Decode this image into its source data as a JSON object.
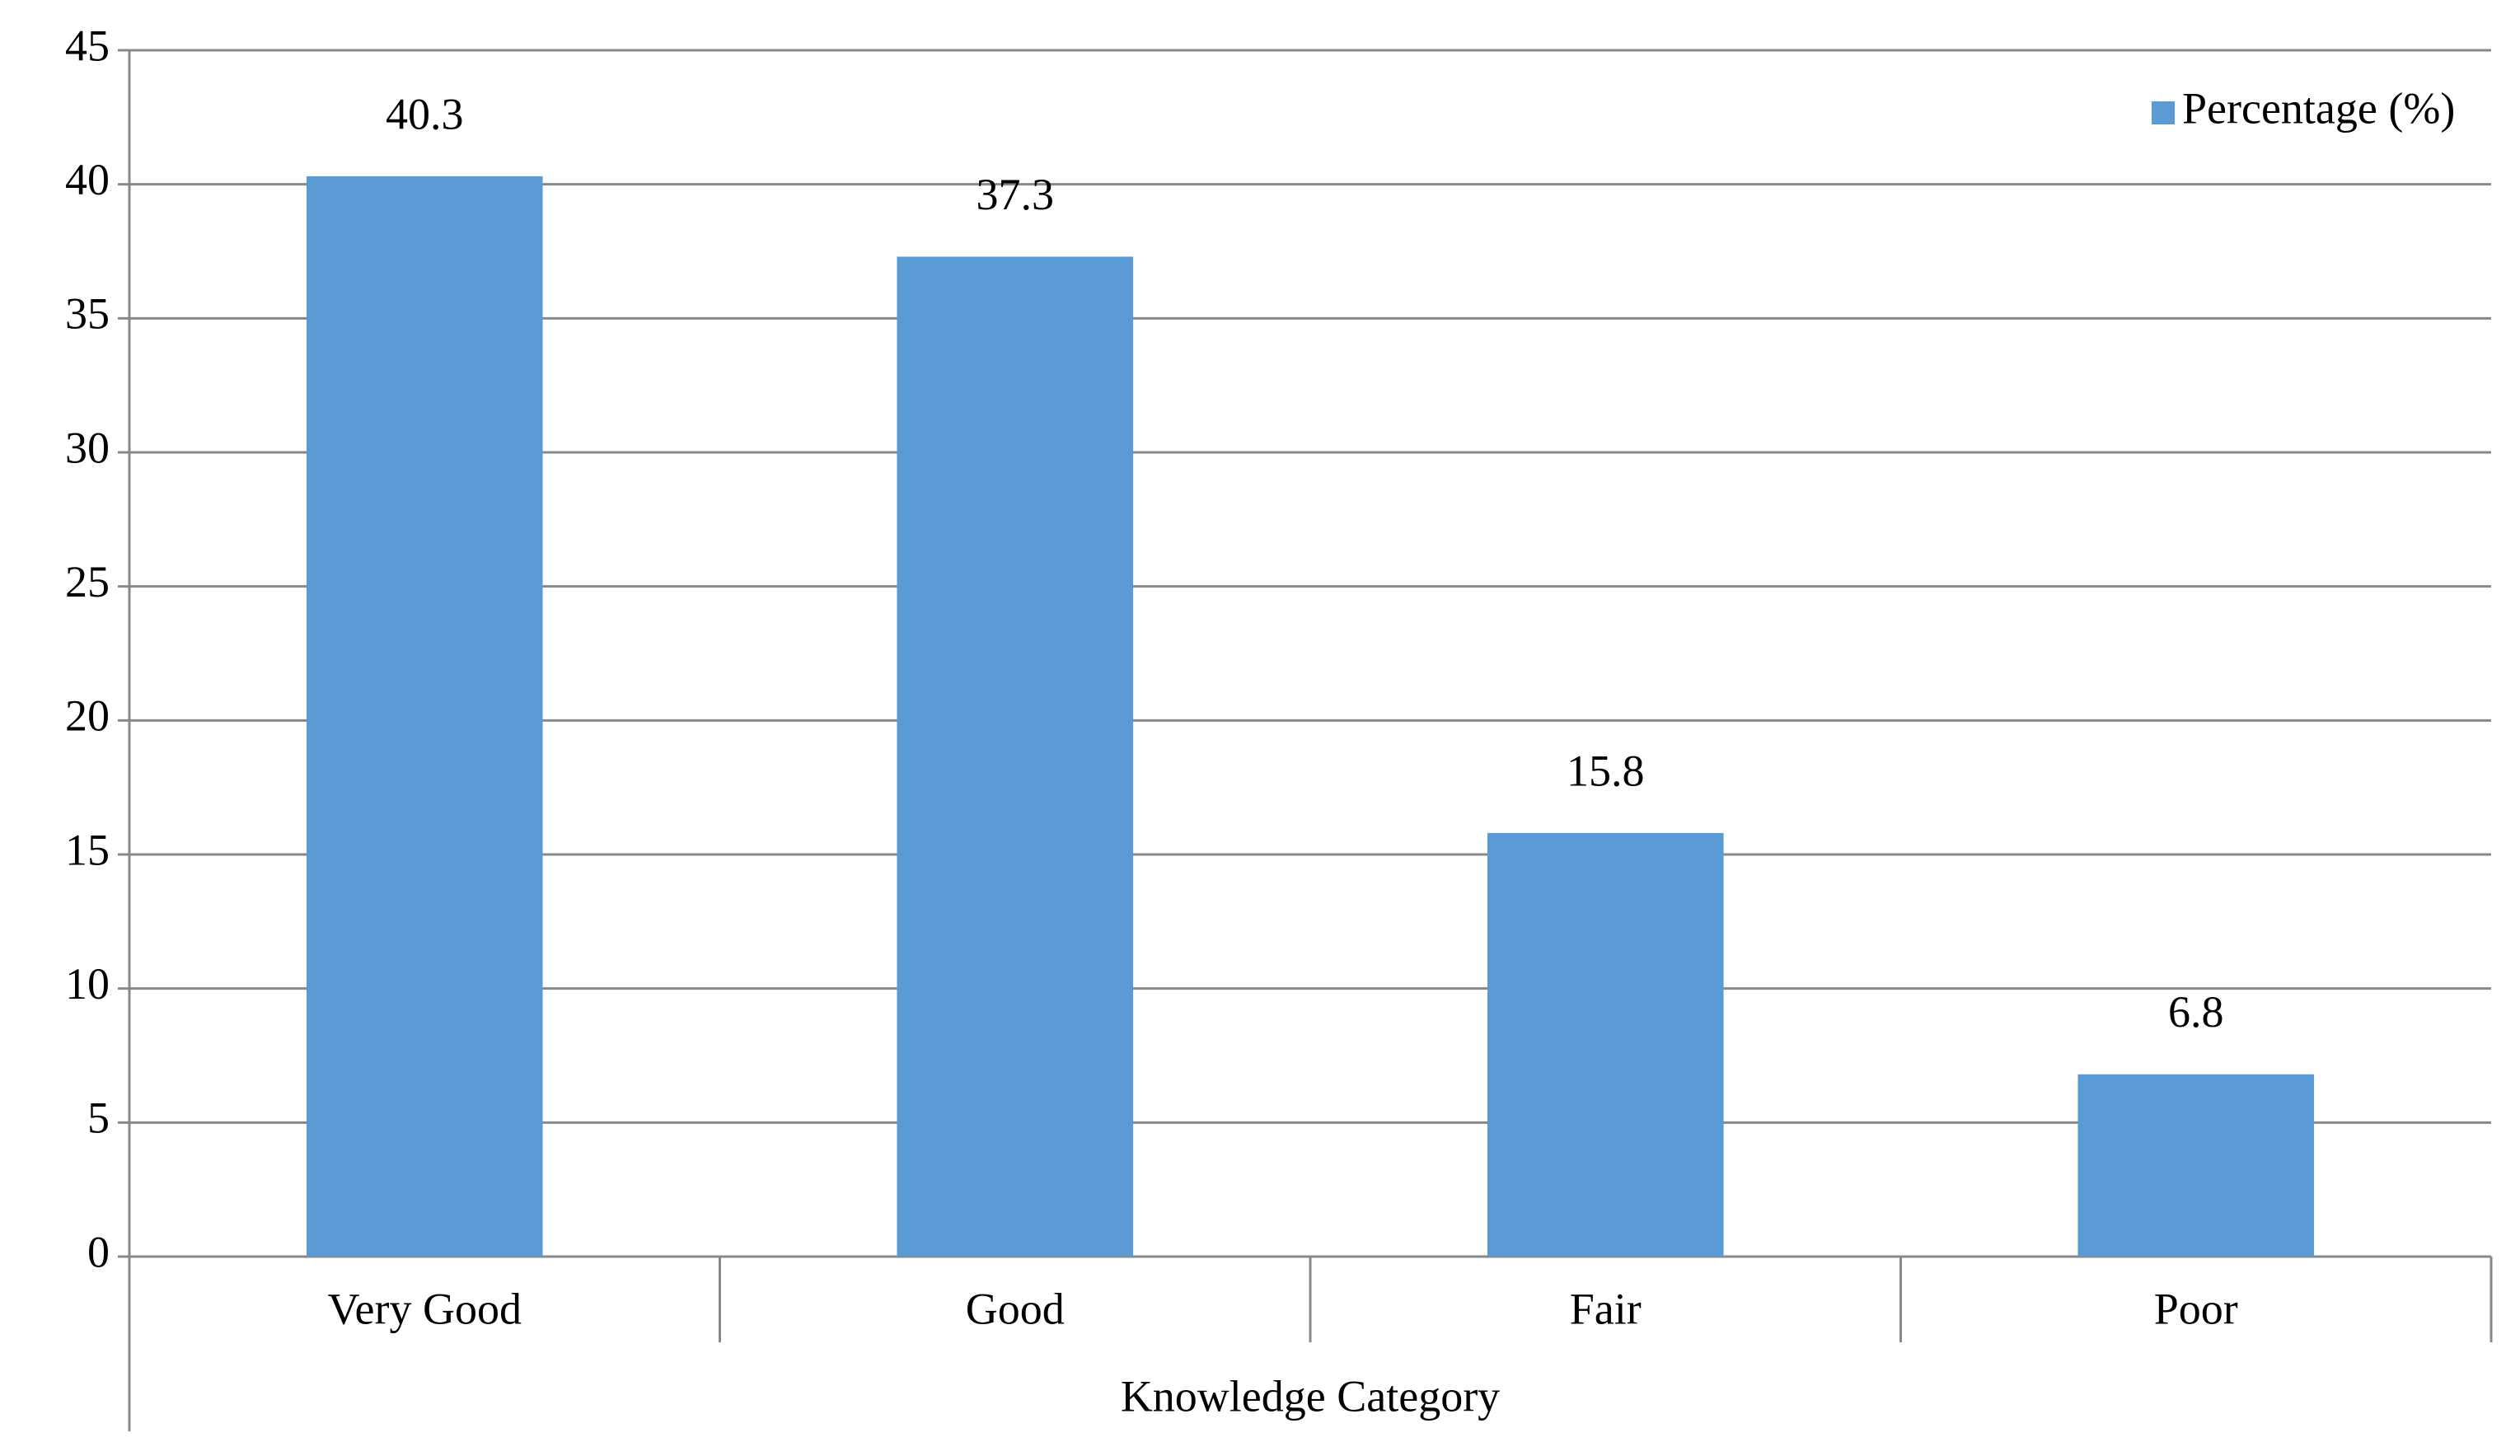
{
  "chart_data": {
    "type": "bar",
    "x_label": "Knowledge Category",
    "categories": [
      "Very Good",
      "Good",
      "Fair",
      "Poor"
    ],
    "series": [
      {
        "name": "Percentage (%)",
        "color": "#5b9bd5",
        "values": [
          40.3,
          37.3,
          15.8,
          6.8
        ]
      }
    ],
    "ylim": [
      0,
      45
    ],
    "yticks": [
      0,
      5,
      10,
      15,
      20,
      25,
      30,
      35,
      40,
      45
    ],
    "grid": true,
    "legend": "top-right"
  }
}
